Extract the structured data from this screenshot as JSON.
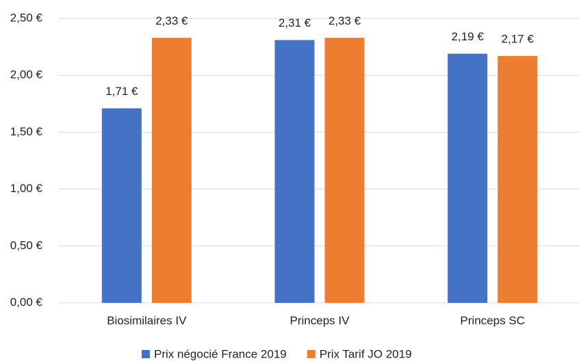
{
  "chart_data": {
    "type": "bar",
    "categories": [
      "Biosimilaires IV",
      "Princeps IV",
      "Princeps SC"
    ],
    "series": [
      {
        "name": "Prix négocié France 2019",
        "color": "#4472c4",
        "values": [
          1.71,
          2.31,
          2.19
        ],
        "value_labels": [
          "1,71 €",
          "2,31 €",
          "2,19 €"
        ]
      },
      {
        "name": "Prix Tarif JO 2019",
        "color": "#ed7d31",
        "values": [
          2.33,
          2.33,
          2.17
        ],
        "value_labels": [
          "2,33 €",
          "2,33 €",
          "2,17 €"
        ]
      }
    ],
    "ylim": [
      0,
      2.5
    ],
    "yticks": [
      {
        "value": 0,
        "label": "0,00 €"
      },
      {
        "value": 0.5,
        "label": "0,50 €"
      },
      {
        "value": 1,
        "label": "1,00 €"
      },
      {
        "value": 1.5,
        "label": "1,50 €"
      },
      {
        "value": 2,
        "label": "2,00 €"
      },
      {
        "value": 2.5,
        "label": "2,50 €"
      }
    ],
    "grid": true,
    "legend": "bottom"
  }
}
